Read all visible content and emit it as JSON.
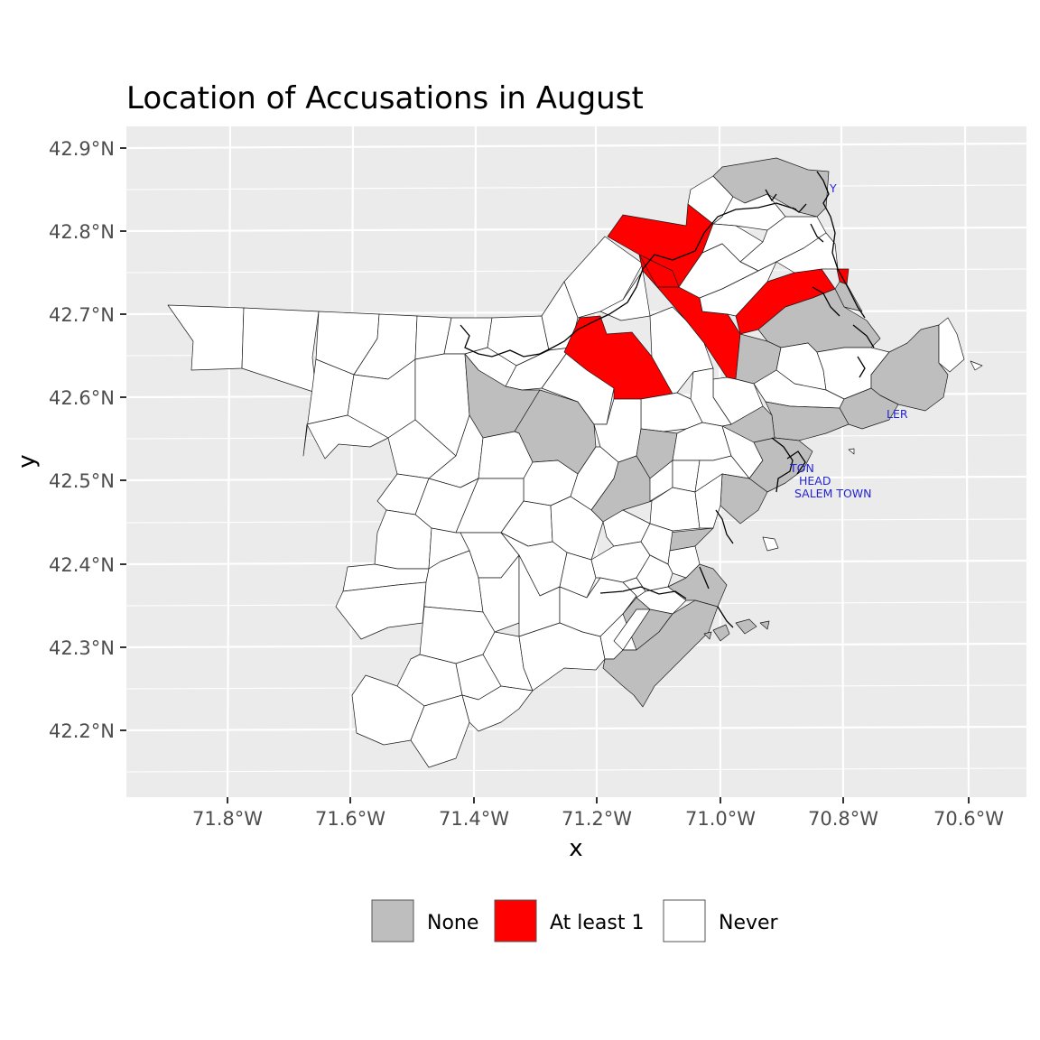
{
  "title": "Location of Accusations in August",
  "axes": {
    "x_title": "x",
    "y_title": "y",
    "x_ticks": [
      "71.8°W",
      "71.6°W",
      "71.4°W",
      "71.2°W",
      "71.0°W",
      "70.8°W",
      "70.6°W"
    ],
    "y_ticks": [
      "42.9°N",
      "42.8°N",
      "42.7°N",
      "42.6°N",
      "42.5°N",
      "42.4°N",
      "42.3°N",
      "42.2°N"
    ]
  },
  "legend": {
    "items": [
      {
        "label": "None",
        "color": "#bebebe"
      },
      {
        "label": "At least 1",
        "color": "#ff0000"
      },
      {
        "label": "Never",
        "color": "#ffffff"
      }
    ]
  },
  "colors": {
    "panel_background": "#ebebeb",
    "gridline": "#ffffff",
    "town_border": "#1a1a1a",
    "label_text": "#2424d6"
  },
  "place_labels": [
    "Y",
    "LER",
    "TON",
    "HEAD",
    "SALEM TOWN"
  ]
}
